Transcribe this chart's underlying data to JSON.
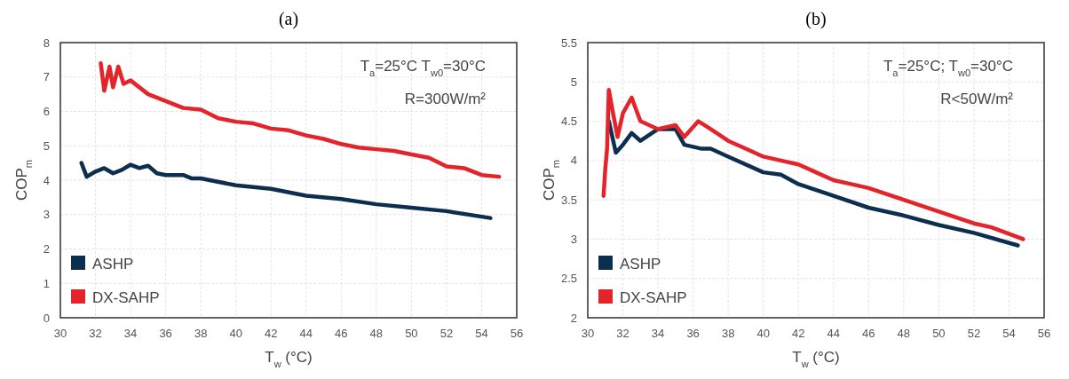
{
  "chart_data": [
    {
      "type": "line",
      "title": "(a)",
      "xlabel": "T$_{w}$ (°C)",
      "ylabel": "COP$_{m}$",
      "annotations": [
        "T$_{a}$=25°C T$_{w0}$=30°C",
        "R=300W/m²"
      ],
      "xlim": [
        30,
        56
      ],
      "xticks": [
        30,
        32,
        34,
        36,
        38,
        40,
        42,
        44,
        46,
        48,
        50,
        52,
        54,
        56
      ],
      "ylim": [
        0,
        8
      ],
      "yticks": [
        0,
        1,
        2,
        3,
        4,
        5,
        6,
        7,
        8
      ],
      "grid": true,
      "legend": "bottom left",
      "line_style": "solid",
      "series": [
        {
          "name": "ASHP",
          "color": "#0d2f4f",
          "x": [
            31.2,
            31.5,
            32,
            32.5,
            33,
            33.5,
            34,
            34.5,
            35,
            35.5,
            36,
            37,
            37.5,
            38,
            40,
            42,
            44,
            46,
            48,
            50,
            52,
            54.5
          ],
          "values": [
            4.5,
            4.1,
            4.25,
            4.35,
            4.2,
            4.3,
            4.45,
            4.35,
            4.42,
            4.2,
            4.15,
            4.15,
            4.05,
            4.05,
            3.85,
            3.75,
            3.55,
            3.45,
            3.3,
            3.2,
            3.1,
            2.9
          ]
        },
        {
          "name": "DX-SAHP",
          "color": "#e3242b",
          "x": [
            32.3,
            32.5,
            32.8,
            33,
            33.3,
            33.6,
            34,
            35,
            36,
            37,
            38,
            39,
            40,
            41,
            42,
            43,
            44,
            45,
            46,
            47,
            48,
            49,
            50,
            51,
            52,
            53,
            54,
            55
          ],
          "values": [
            7.4,
            6.6,
            7.3,
            6.7,
            7.3,
            6.8,
            6.9,
            6.5,
            6.3,
            6.1,
            6.05,
            5.8,
            5.7,
            5.65,
            5.5,
            5.45,
            5.3,
            5.2,
            5.05,
            4.95,
            4.9,
            4.85,
            4.75,
            4.65,
            4.4,
            4.35,
            4.15,
            4.1
          ]
        }
      ]
    },
    {
      "type": "line",
      "title": "(b)",
      "xlabel": "T$_{w}$ (°C)",
      "ylabel": "COP$_{m}$",
      "annotations": [
        "T$_{a}$=25°C; T$_{w0}$=30°C",
        "R<50W/m²"
      ],
      "xlim": [
        30,
        56
      ],
      "xticks": [
        30,
        32,
        34,
        36,
        38,
        40,
        42,
        44,
        46,
        48,
        50,
        52,
        54,
        56
      ],
      "ylim": [
        2,
        5.5
      ],
      "yticks": [
        2,
        2.5,
        3,
        3.5,
        4,
        4.5,
        5,
        5.5
      ],
      "grid": true,
      "legend": "bottom left",
      "line_style": "solid",
      "series": [
        {
          "name": "ASHP",
          "color": "#0d2f4f",
          "x": [
            31.2,
            31.6,
            32,
            32.5,
            33,
            34,
            35,
            35.5,
            36.5,
            37,
            38,
            40,
            41,
            42,
            44,
            46,
            48,
            50,
            52,
            54.5
          ],
          "values": [
            4.5,
            4.1,
            4.2,
            4.35,
            4.25,
            4.4,
            4.4,
            4.2,
            4.15,
            4.15,
            4.05,
            3.85,
            3.82,
            3.7,
            3.55,
            3.4,
            3.3,
            3.18,
            3.08,
            2.92
          ]
        },
        {
          "name": "DX-SAHP",
          "color": "#e3242b",
          "x": [
            30.9,
            31,
            31.1,
            31.2,
            31.4,
            31.7,
            32,
            32.5,
            33,
            34,
            35,
            35.5,
            36.3,
            37,
            38,
            39,
            40,
            41,
            42,
            43,
            44,
            45,
            46,
            48,
            50,
            52,
            53,
            54.8
          ],
          "values": [
            3.55,
            3.9,
            4.15,
            4.9,
            4.65,
            4.3,
            4.6,
            4.8,
            4.5,
            4.4,
            4.45,
            4.3,
            4.5,
            4.4,
            4.25,
            4.15,
            4.05,
            4.0,
            3.95,
            3.85,
            3.75,
            3.7,
            3.65,
            3.5,
            3.35,
            3.2,
            3.15,
            3.0
          ]
        }
      ]
    }
  ]
}
